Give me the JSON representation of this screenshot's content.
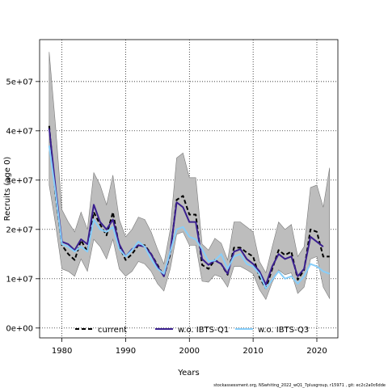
{
  "chart_data": {
    "type": "line",
    "xlabel": "Years",
    "ylabel": "Recruits (age 0)",
    "xlim": [
      1976.5,
      2023.3
    ],
    "ylim": [
      -2000000,
      58500000
    ],
    "x_ticks": [
      1980,
      1990,
      2000,
      2010,
      2020
    ],
    "x_tick_labels": [
      "1980",
      "1990",
      "2000",
      "2010",
      "2020"
    ],
    "y_ticks": [
      0,
      10000000,
      20000000,
      30000000,
      40000000,
      50000000
    ],
    "y_tick_labels": [
      "0e+00",
      "1e+07",
      "2e+07",
      "3e+07",
      "4e+07",
      "5e+07"
    ],
    "grid": true,
    "legend_position": "bottom",
    "x": [
      1978,
      1979,
      1980,
      1981,
      1982,
      1983,
      1984,
      1985,
      1986,
      1987,
      1988,
      1989,
      1990,
      1991,
      1992,
      1993,
      1994,
      1995,
      1996,
      1997,
      1998,
      1999,
      2000,
      2001,
      2002,
      2003,
      2004,
      2005,
      2006,
      2007,
      2008,
      2009,
      2010,
      2011,
      2012,
      2013,
      2014,
      2015,
      2016,
      2017,
      2018,
      2019,
      2020,
      2021,
      2022
    ],
    "band": {
      "upper": [
        56000000,
        41000000,
        24000000,
        21500000,
        19500000,
        23500000,
        20000000,
        31500000,
        29000000,
        25000000,
        31000000,
        22000000,
        18500000,
        20000000,
        22500000,
        22000000,
        19500000,
        16000000,
        13000000,
        20000000,
        34500000,
        35500000,
        30500000,
        30500000,
        17000000,
        15800000,
        18200000,
        17200000,
        13800000,
        21500000,
        21500000,
        20500000,
        19500000,
        13500000,
        11200000,
        16500000,
        21500000,
        20000000,
        21000000,
        14500000,
        16500000,
        28500000,
        29000000,
        24500000,
        32500000
      ],
      "lower": [
        29000000,
        21000000,
        12000000,
        11500000,
        10500000,
        14000000,
        11500000,
        18000000,
        16500000,
        14000000,
        18000000,
        12000000,
        10500000,
        11500000,
        13500000,
        13000000,
        11500000,
        9000000,
        7500000,
        12000000,
        19000000,
        19500000,
        16800000,
        16800000,
        9500000,
        9300000,
        10800000,
        10300000,
        8300000,
        12500000,
        12500000,
        11800000,
        11000000,
        7800000,
        5800000,
        9300000,
        11800000,
        10800000,
        11200000,
        7000000,
        8300000,
        14000000,
        14500000,
        8300000,
        6000000
      ]
    },
    "series": [
      {
        "name": "current",
        "color": "#000000",
        "dash": "dashed",
        "values": [
          41000000,
          27000000,
          16800000,
          15000000,
          13800000,
          17800000,
          15500000,
          23500000,
          21000000,
          18800000,
          23500000,
          16500000,
          13800000,
          15000000,
          16800000,
          16800000,
          15000000,
          12800000,
          10500000,
          15000000,
          26000000,
          26800000,
          23000000,
          23000000,
          12800000,
          12000000,
          13800000,
          13000000,
          10800000,
          16300000,
          16300000,
          15300000,
          14500000,
          10300000,
          8000000,
          12000000,
          15800000,
          14800000,
          15500000,
          9800000,
          11800000,
          20000000,
          19500000,
          14500000,
          14500000
        ]
      },
      {
        "name": "w.o. IBTS-Q1",
        "color": "#3a1f8f",
        "dash": "solid",
        "values": [
          40500000,
          28500000,
          17500000,
          17000000,
          15800000,
          18000000,
          17000000,
          25000000,
          21500000,
          20000000,
          22000000,
          17000000,
          14500000,
          16000000,
          16800000,
          16500000,
          15000000,
          12500000,
          10500000,
          15500000,
          25500000,
          24500000,
          21500000,
          21500000,
          14000000,
          12800000,
          13700000,
          13000000,
          11000000,
          15500000,
          16000000,
          14000000,
          13000000,
          11500000,
          8800000,
          12500000,
          15000000,
          14000000,
          14500000,
          10500000,
          12000000,
          18500000,
          17500000,
          16500000,
          null
        ]
      },
      {
        "name": "w.o. IBTS-Q3",
        "color": "#87cefa",
        "dash": "solid",
        "values": [
          37000000,
          27500000,
          17000000,
          16500000,
          15500000,
          16500000,
          15500000,
          22000000,
          20000000,
          19500000,
          20500000,
          16000000,
          14500000,
          15800000,
          17500000,
          16500000,
          14000000,
          12000000,
          11000000,
          15500000,
          20000000,
          20500000,
          18500000,
          18000000,
          16000000,
          13500000,
          13700000,
          15000000,
          12000000,
          14500000,
          15000000,
          13000000,
          12500000,
          11000000,
          8000000,
          9800000,
          11500000,
          10000000,
          10500000,
          9000000,
          10500000,
          13000000,
          12500000,
          11500000,
          11000000
        ]
      }
    ],
    "footnote": "stockassessment.org, NSwhiting_2022_wQ1_7plusgroup, r15971 , git: ec2c2a0c6dde"
  }
}
